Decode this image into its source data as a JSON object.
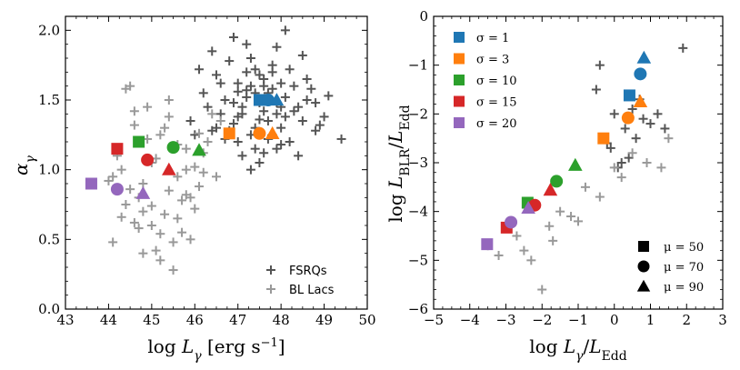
{
  "chart_data": [
    {
      "type": "scatter",
      "xlabel": "log L_γ [erg s⁻¹]",
      "ylabel": "α_γ",
      "xlim": [
        43,
        50
      ],
      "ylim": [
        0.0,
        2.1
      ],
      "xticks": [
        43,
        44,
        45,
        46,
        47,
        48,
        49,
        50
      ],
      "yticks": [
        0.0,
        0.5,
        1.0,
        1.5,
        2.0
      ],
      "xtick_labels": [
        "43",
        "44",
        "45",
        "46",
        "47",
        "48",
        "49",
        "50"
      ],
      "ytick_labels": [
        "0.0",
        "0.5",
        "1.0",
        "1.5",
        "2.0"
      ],
      "legend_position": "bottom-right",
      "grid": false,
      "series": [
        {
          "name": "FSRQs",
          "marker": "plus",
          "color": "#555555",
          "x": [
            46.4,
            46.8,
            47.0,
            47.2,
            47.4,
            47.5,
            47.6,
            47.8,
            47.9,
            48.1,
            48.3,
            48.5,
            48.0,
            47.3,
            46.9,
            47.1,
            47.6,
            48.2,
            48.6,
            48.8,
            49.0,
            47.7,
            47.4,
            46.6,
            46.2,
            47.0,
            47.5,
            48.0,
            48.4,
            47.2,
            46.9,
            47.8,
            48.9,
            49.4,
            47.3,
            47.9,
            48.1,
            46.7,
            46.5,
            47.0,
            47.4,
            47.6,
            47.8,
            48.3,
            48.7,
            46.3,
            47.2,
            47.5,
            47.9,
            48.0,
            45.9,
            46.1,
            46.8,
            47.1,
            47.7,
            48.2,
            48.5,
            47.0,
            46.4,
            46.6,
            47.3,
            47.6,
            48.4,
            48.8,
            47.8,
            47.5,
            47.1,
            46.9,
            47.4,
            47.9,
            48.6,
            49.1,
            46.0,
            46.7,
            47.2,
            48.1,
            47.3,
            47.7,
            46.5,
            48.0
          ],
          "y": [
            1.85,
            1.78,
            1.62,
            1.7,
            1.55,
            1.48,
            1.42,
            1.58,
            1.4,
            1.52,
            1.6,
            1.35,
            1.3,
            1.25,
            1.33,
            1.45,
            1.65,
            1.72,
            1.5,
            1.28,
            1.38,
            1.22,
            1.15,
            1.4,
            1.55,
            1.2,
            1.05,
            1.18,
            1.45,
            1.9,
            1.95,
            1.75,
            1.32,
            1.22,
            1.6,
            1.88,
            2.0,
            1.5,
            1.68,
            1.38,
            1.3,
            1.12,
            1.25,
            1.42,
            1.58,
            1.45,
            1.52,
            1.68,
            1.48,
            1.62,
            1.35,
            1.72,
            1.28,
            1.1,
            1.35,
            1.2,
            1.82,
            1.56,
            1.28,
            1.62,
            1.8,
            1.6,
            1.1,
            1.48,
            1.7,
            1.36,
            1.4,
            1.48,
            1.72,
            1.15,
            1.65,
            1.53,
            1.25,
            1.22,
            1.57,
            1.38,
            1.0,
            1.55,
            1.3,
            1.45
          ]
        },
        {
          "name": "BL Lacs",
          "marker": "plus",
          "color": "#999999",
          "x": [
            44.1,
            44.4,
            44.6,
            44.8,
            45.0,
            45.2,
            45.4,
            45.6,
            45.8,
            46.0,
            46.2,
            44.5,
            44.9,
            45.3,
            45.7,
            46.1,
            44.3,
            44.7,
            45.1,
            45.5,
            45.9,
            46.3,
            44.0,
            44.2,
            44.6,
            45.0,
            45.4,
            45.8,
            44.8,
            45.2,
            45.6,
            46.0,
            44.4,
            45.3,
            45.7,
            46.4,
            44.1,
            44.9,
            45.5,
            46.2,
            44.7,
            45.1,
            45.9,
            44.5,
            45.0,
            45.6,
            46.1,
            44.3,
            44.8,
            45.4,
            46.6,
            44.6,
            45.2,
            45.8,
            46.5
          ],
          "y": [
            0.48,
            0.75,
            0.62,
            0.9,
            1.05,
            1.25,
            1.38,
            0.95,
            0.82,
            0.72,
            1.12,
            1.6,
            1.45,
            0.68,
            0.55,
            0.88,
            1.0,
            0.8,
            0.42,
            0.28,
            0.5,
            1.2,
            0.92,
            1.1,
            1.32,
            0.6,
            0.85,
            1.15,
            0.7,
            0.35,
            0.65,
            1.02,
            1.58,
            1.3,
            0.78,
            1.4,
            0.95,
            1.22,
            0.48,
            0.98,
            0.58,
            1.08,
            0.8,
            0.86,
            0.74,
            1.18,
            1.26,
            0.66,
            0.4,
            1.5,
            1.35,
            1.42,
            0.54,
            1.0,
            0.95
          ]
        }
      ],
      "markers": [
        {
          "sigma": 1,
          "mu": 50,
          "x": 47.5,
          "y": 1.5
        },
        {
          "sigma": 1,
          "mu": 70,
          "x": 47.7,
          "y": 1.5
        },
        {
          "sigma": 1,
          "mu": 90,
          "x": 47.9,
          "y": 1.5
        },
        {
          "sigma": 3,
          "mu": 50,
          "x": 46.8,
          "y": 1.26
        },
        {
          "sigma": 3,
          "mu": 70,
          "x": 47.5,
          "y": 1.26
        },
        {
          "sigma": 3,
          "mu": 90,
          "x": 47.8,
          "y": 1.26
        },
        {
          "sigma": 10,
          "mu": 50,
          "x": 44.7,
          "y": 1.2
        },
        {
          "sigma": 10,
          "mu": 70,
          "x": 45.5,
          "y": 1.16
        },
        {
          "sigma": 10,
          "mu": 90,
          "x": 46.1,
          "y": 1.14
        },
        {
          "sigma": 15,
          "mu": 50,
          "x": 44.2,
          "y": 1.15
        },
        {
          "sigma": 15,
          "mu": 70,
          "x": 44.9,
          "y": 1.07
        },
        {
          "sigma": 15,
          "mu": 90,
          "x": 45.4,
          "y": 1.0
        },
        {
          "sigma": 20,
          "mu": 50,
          "x": 43.6,
          "y": 0.9
        },
        {
          "sigma": 20,
          "mu": 70,
          "x": 44.2,
          "y": 0.86
        },
        {
          "sigma": 20,
          "mu": 90,
          "x": 44.8,
          "y": 0.83
        }
      ]
    },
    {
      "type": "scatter",
      "xlabel": "log L_γ/L_Edd",
      "ylabel": "log L_BLR/L_Edd",
      "xlim": [
        -5,
        3
      ],
      "ylim": [
        -6,
        0
      ],
      "xticks": [
        -5,
        -4,
        -3,
        -2,
        -1,
        0,
        1,
        2,
        3
      ],
      "yticks": [
        -6,
        -5,
        -4,
        -3,
        -2,
        -1,
        0
      ],
      "xtick_labels": [
        "−5",
        "−4",
        "−3",
        "−2",
        "−1",
        "0",
        "1",
        "2",
        "3"
      ],
      "ytick_labels": [
        "−6",
        "−5",
        "−4",
        "−3",
        "−2",
        "−1",
        "0"
      ],
      "legend_position": "top-left",
      "shape_legend_position": "bottom-right",
      "grid": false,
      "series": [
        {
          "name": "FSRQs",
          "marker": "plus",
          "color": "#555555",
          "x": [
            -0.5,
            0.0,
            0.3,
            0.5,
            0.7,
            1.0,
            1.4,
            1.9,
            0.2,
            -0.2,
            0.8,
            -0.1,
            0.6,
            0.4,
            1.2,
            0.1,
            -0.4
          ],
          "y": [
            -1.5,
            -2.0,
            -2.3,
            -1.9,
            -1.7,
            -2.2,
            -2.3,
            -0.65,
            -3.0,
            -2.6,
            -2.1,
            -2.7,
            -2.5,
            -2.9,
            -2.0,
            -3.1,
            -1.0
          ]
        },
        {
          "name": "BL Lacs",
          "marker": "plus",
          "color": "#999999",
          "x": [
            -3.5,
            -3.2,
            -2.7,
            -2.3,
            -2.0,
            -1.8,
            -1.5,
            -1.2,
            -0.8,
            -0.4,
            0.0,
            0.2,
            0.5,
            0.9,
            1.3,
            1.5,
            -2.5,
            -1.0,
            -1.7
          ],
          "y": [
            -4.7,
            -4.9,
            -4.5,
            -5.0,
            -5.6,
            -4.3,
            -4.0,
            -4.1,
            -3.5,
            -3.7,
            -3.1,
            -3.3,
            -2.8,
            -3.0,
            -3.1,
            -2.5,
            -4.8,
            -4.2,
            -4.6
          ]
        }
      ],
      "markers": [
        {
          "sigma": 1,
          "mu": 50,
          "x": 0.42,
          "y": -1.62
        },
        {
          "sigma": 1,
          "mu": 70,
          "x": 0.72,
          "y": -1.18
        },
        {
          "sigma": 1,
          "mu": 90,
          "x": 0.82,
          "y": -0.85
        },
        {
          "sigma": 3,
          "mu": 50,
          "x": -0.3,
          "y": -2.5
        },
        {
          "sigma": 3,
          "mu": 70,
          "x": 0.38,
          "y": -2.08
        },
        {
          "sigma": 3,
          "mu": 90,
          "x": 0.72,
          "y": -1.75
        },
        {
          "sigma": 10,
          "mu": 50,
          "x": -2.4,
          "y": -3.82
        },
        {
          "sigma": 10,
          "mu": 70,
          "x": -1.6,
          "y": -3.38
        },
        {
          "sigma": 10,
          "mu": 90,
          "x": -1.08,
          "y": -3.05
        },
        {
          "sigma": 15,
          "mu": 50,
          "x": -2.98,
          "y": -4.33
        },
        {
          "sigma": 15,
          "mu": 70,
          "x": -2.2,
          "y": -3.87
        },
        {
          "sigma": 15,
          "mu": 90,
          "x": -1.77,
          "y": -3.56
        },
        {
          "sigma": 20,
          "mu": 50,
          "x": -3.52,
          "y": -4.67
        },
        {
          "sigma": 20,
          "mu": 70,
          "x": -2.86,
          "y": -4.22
        },
        {
          "sigma": 20,
          "mu": 90,
          "x": -2.38,
          "y": -3.93
        }
      ]
    }
  ],
  "color_legend": [
    {
      "label": "σ = 1",
      "sigma": 1,
      "color": "#1f77b4"
    },
    {
      "label": "σ = 3",
      "sigma": 3,
      "color": "#ff7f0e"
    },
    {
      "label": "σ = 10",
      "sigma": 10,
      "color": "#2ca02c"
    },
    {
      "label": "σ = 15",
      "sigma": 15,
      "color": "#d62728"
    },
    {
      "label": "σ = 20",
      "sigma": 20,
      "color": "#9467bd"
    }
  ],
  "shape_legend": [
    {
      "label": "μ = 50",
      "mu": 50,
      "shape": "square"
    },
    {
      "label": "μ = 70",
      "mu": 70,
      "shape": "circle"
    },
    {
      "label": "μ = 90",
      "mu": 90,
      "shape": "triangle"
    }
  ]
}
